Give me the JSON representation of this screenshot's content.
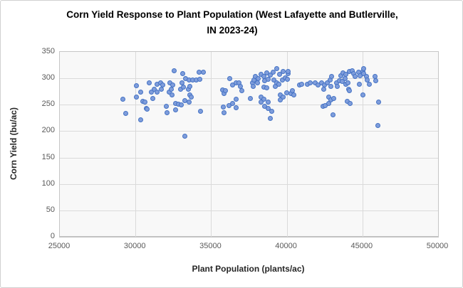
{
  "chart": {
    "title": "Corn Yield Response to Plant Population (West Lafayette and Butlerville, IN 2023-24)",
    "x_axis": {
      "label": "Plant Population (plants/ac)",
      "min": 25000,
      "max": 50000,
      "ticks": [
        25000,
        30000,
        35000,
        40000,
        45000,
        50000
      ]
    },
    "y_axis": {
      "label": "Corn Yield (bu/ac)",
      "min": 0,
      "max": 350,
      "ticks": [
        0,
        50,
        100,
        150,
        200,
        250,
        300,
        350
      ]
    },
    "colors": {
      "point_fill": "#7f9ddb",
      "point_border": "#4472c4",
      "gridline": "#dadada",
      "plot_bg": "#f8f8f8",
      "tick_text": "#595959"
    }
  },
  "chart_data": {
    "type": "scatter",
    "title": "Corn Yield Response to Plant Population (West Lafayette and Butlerville, IN 2023-24)",
    "xlabel": "Plant Population (plants/ac)",
    "ylabel": "Corn Yield (bu/ac)",
    "xlim": [
      25000,
      50000
    ],
    "ylim": [
      0,
      350
    ],
    "grid": true,
    "legend": false,
    "series": [
      {
        "points": [
          [
            29170,
            261
          ],
          [
            29370,
            234
          ],
          [
            30050,
            265
          ],
          [
            30080,
            286
          ],
          [
            30330,
            274
          ],
          [
            30330,
            222
          ],
          [
            30470,
            256
          ],
          [
            30630,
            255
          ],
          [
            30740,
            243
          ],
          [
            30790,
            242
          ],
          [
            30910,
            292
          ],
          [
            31070,
            274
          ],
          [
            31130,
            262
          ],
          [
            31260,
            280
          ],
          [
            31410,
            274
          ],
          [
            31440,
            289
          ],
          [
            31650,
            292
          ],
          [
            31690,
            279
          ],
          [
            31810,
            287
          ],
          [
            32040,
            247
          ],
          [
            32070,
            235
          ],
          [
            32230,
            274
          ],
          [
            32280,
            291
          ],
          [
            32350,
            280
          ],
          [
            32430,
            268
          ],
          [
            32480,
            288
          ],
          [
            32560,
            314
          ],
          [
            32640,
            253
          ],
          [
            32670,
            240
          ],
          [
            32820,
            251
          ],
          [
            32980,
            279
          ],
          [
            33010,
            250
          ],
          [
            33060,
            292
          ],
          [
            33110,
            309
          ],
          [
            33170,
            283
          ],
          [
            33250,
            190
          ],
          [
            33270,
            258
          ],
          [
            33290,
            300
          ],
          [
            33480,
            279
          ],
          [
            33530,
            297
          ],
          [
            33530,
            255
          ],
          [
            33580,
            269
          ],
          [
            33610,
            285
          ],
          [
            33690,
            264
          ],
          [
            33760,
            297
          ],
          [
            34000,
            297
          ],
          [
            34210,
            312
          ],
          [
            34270,
            298
          ],
          [
            34310,
            237
          ],
          [
            34470,
            312
          ],
          [
            35760,
            278
          ],
          [
            35810,
            246
          ],
          [
            35850,
            271
          ],
          [
            35850,
            235
          ],
          [
            35960,
            277
          ],
          [
            36200,
            249
          ],
          [
            36230,
            300
          ],
          [
            36430,
            287
          ],
          [
            36430,
            252
          ],
          [
            36630,
            291
          ],
          [
            36630,
            245
          ],
          [
            36670,
            261
          ],
          [
            36820,
            292
          ],
          [
            36950,
            285
          ],
          [
            37010,
            277
          ],
          [
            37610,
            262
          ],
          [
            37730,
            292
          ],
          [
            37800,
            285
          ],
          [
            37840,
            297
          ],
          [
            37920,
            304
          ],
          [
            38080,
            292
          ],
          [
            38120,
            300
          ],
          [
            38280,
            265
          ],
          [
            38280,
            255
          ],
          [
            38310,
            307
          ],
          [
            38470,
            283
          ],
          [
            38500,
            304
          ],
          [
            38500,
            260
          ],
          [
            38550,
            296
          ],
          [
            38550,
            247
          ],
          [
            38700,
            310
          ],
          [
            38700,
            282
          ],
          [
            38750,
            298
          ],
          [
            38750,
            255
          ],
          [
            38780,
            243
          ],
          [
            38910,
            306
          ],
          [
            38910,
            224
          ],
          [
            39020,
            238
          ],
          [
            39100,
            312
          ],
          [
            39170,
            297
          ],
          [
            39250,
            285
          ],
          [
            39330,
            319
          ],
          [
            39330,
            292
          ],
          [
            39490,
            289
          ],
          [
            39530,
            307
          ],
          [
            39560,
            269
          ],
          [
            39590,
            259
          ],
          [
            39690,
            297
          ],
          [
            39750,
            313
          ],
          [
            39750,
            264
          ],
          [
            39880,
            301
          ],
          [
            40000,
            273
          ],
          [
            40030,
            298
          ],
          [
            40090,
            309
          ],
          [
            40110,
            313
          ],
          [
            40270,
            271
          ],
          [
            40350,
            276
          ],
          [
            40470,
            268
          ],
          [
            40820,
            287
          ],
          [
            40970,
            289
          ],
          [
            41370,
            289
          ],
          [
            41560,
            292
          ],
          [
            41870,
            291
          ],
          [
            42080,
            288
          ],
          [
            42310,
            292
          ],
          [
            42390,
            247
          ],
          [
            42450,
            279
          ],
          [
            42500,
            288
          ],
          [
            42550,
            249
          ],
          [
            42700,
            291
          ],
          [
            42750,
            264
          ],
          [
            42750,
            252
          ],
          [
            42860,
            297
          ],
          [
            42910,
            285
          ],
          [
            42910,
            259
          ],
          [
            42970,
            303
          ],
          [
            43060,
            231
          ],
          [
            43120,
            262
          ],
          [
            43280,
            292
          ],
          [
            43330,
            285
          ],
          [
            43490,
            295
          ],
          [
            43570,
            305
          ],
          [
            43690,
            294
          ],
          [
            43720,
            310
          ],
          [
            43850,
            300
          ],
          [
            43880,
            289
          ],
          [
            43910,
            307
          ],
          [
            44000,
            256
          ],
          [
            44040,
            292
          ],
          [
            44080,
            279
          ],
          [
            44160,
            313
          ],
          [
            44160,
            276
          ],
          [
            44190,
            252
          ],
          [
            44320,
            315
          ],
          [
            44430,
            309
          ],
          [
            44510,
            303
          ],
          [
            44740,
            312
          ],
          [
            44790,
            289
          ],
          [
            44850,
            305
          ],
          [
            45020,
            313
          ],
          [
            45050,
            268
          ],
          [
            45090,
            318
          ],
          [
            45090,
            309
          ],
          [
            45290,
            304
          ],
          [
            45330,
            297
          ],
          [
            45450,
            289
          ],
          [
            45840,
            304
          ],
          [
            45870,
            296
          ],
          [
            46030,
            211
          ],
          [
            46070,
            255
          ]
        ]
      }
    ]
  }
}
